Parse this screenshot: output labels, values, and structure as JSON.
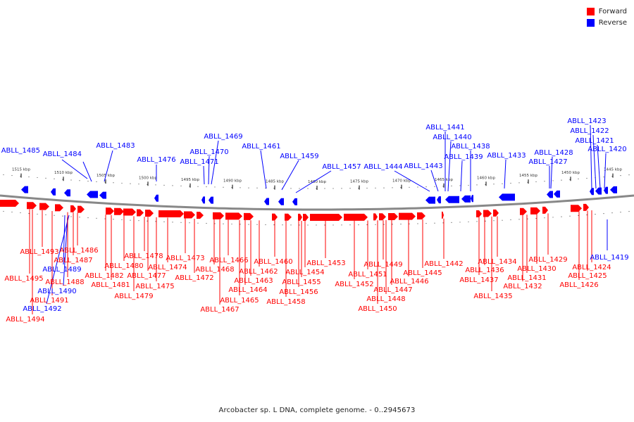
{
  "legend": [
    {
      "label": "Forward",
      "color": "#ff0000"
    },
    {
      "label": "Reverse",
      "color": "#0000ff"
    }
  ],
  "caption": "Arcobacter sp. L DNA, complete genome. - 0..2945673",
  "colors": {
    "forward": "#ff0000",
    "reverse": "#0000ff",
    "backbone": "#888888"
  },
  "scale_labels": [
    "1515 kbp",
    "1510 kbp",
    "1505 kbp",
    "1500 kbp",
    "1495 kbp",
    "1490 kbp",
    "1485 kbp",
    "1480 kbp",
    "1475 kbp",
    "1470 kbp",
    "1465 kbp",
    "1460 kbp",
    "1455 kbp",
    "1450 kbp",
    "1445 kbp"
  ],
  "reverse_genes": [
    "ABLL_1485",
    "ABLL_1484",
    "ABLL_1483",
    "ABLL_1476",
    "ABLL_1471",
    "ABLL_1470",
    "ABLL_1469",
    "ABLL_1461",
    "ABLL_1459",
    "ABLL_1457",
    "ABLL_1444",
    "ABLL_1443",
    "ABLL_1441",
    "ABLL_1440",
    "ABLL_1439",
    "ABLL_1438",
    "ABLL_1433",
    "ABLL_1428",
    "ABLL_1427",
    "ABLL_1423",
    "ABLL_1422",
    "ABLL_1421",
    "ABLL_1420",
    "ABLL_1419",
    "ABLL_1489",
    "ABLL_1490",
    "ABLL_1492"
  ],
  "forward_genes": [
    "ABLL_1495",
    "ABLL_1494",
    "ABLL_1493",
    "ABLL_1491",
    "ABLL_1488",
    "ABLL_1487",
    "ABLL_1486",
    "ABLL_1482",
    "ABLL_1481",
    "ABLL_1480",
    "ABLL_1479",
    "ABLL_1478",
    "ABLL_1477",
    "ABLL_1475",
    "ABLL_1474",
    "ABLL_1473",
    "ABLL_1472",
    "ABLL_1468",
    "ABLL_1467",
    "ABLL_1466",
    "ABLL_1465",
    "ABLL_1464",
    "ABLL_1463",
    "ABLL_1462",
    "ABLL_1460",
    "ABLL_1458",
    "ABLL_1456",
    "ABLL_1455",
    "ABLL_1454",
    "ABLL_1453",
    "ABLL_1452",
    "ABLL_1451",
    "ABLL_1450",
    "ABLL_1449",
    "ABLL_1448",
    "ABLL_1447",
    "ABLL_1446",
    "ABLL_1445",
    "ABLL_1442",
    "ABLL_1437",
    "ABLL_1436",
    "ABLL_1435",
    "ABLL_1434",
    "ABLL_1432",
    "ABLL_1431",
    "ABLL_1430",
    "ABLL_1429",
    "ABLL_1426",
    "ABLL_1425",
    "ABLL_1424"
  ]
}
